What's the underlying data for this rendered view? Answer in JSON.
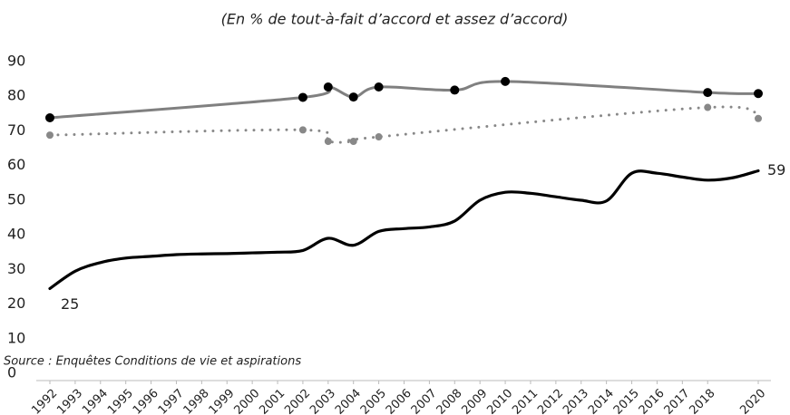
{
  "chart_data": {
    "type": "line",
    "subtitle": "(En % de tout-à-fait d’accord et assez d’accord)",
    "source": "Source : Enquêtes Conditions de vie et aspirations",
    "xlim": [
      1992,
      2020
    ],
    "xticks": [
      1992,
      1993,
      1994,
      1995,
      1996,
      1997,
      1998,
      1999,
      2000,
      2001,
      2002,
      2003,
      2004,
      2005,
      2006,
      2007,
      2008,
      2009,
      2010,
      2011,
      2012,
      2013,
      2014,
      2015,
      2016,
      2017,
      2018,
      2020
    ],
    "ylim": [
      0,
      90
    ],
    "yticks": [
      0,
      10,
      20,
      30,
      40,
      50,
      60,
      70,
      80,
      90
    ],
    "series": [
      {
        "color": "#808080",
        "style": "solid",
        "markers": true,
        "x": [
          1992,
          2002,
          2003,
          2004,
          2005,
          2008,
          2010,
          2018,
          2020
        ],
        "values": [
          74.3,
          80.2,
          83.2,
          80.3,
          83.2,
          82.3,
          84.8,
          81.6,
          81.3
        ]
      },
      {
        "color": "#888888",
        "style": "dotted",
        "markers": true,
        "x": [
          1992,
          2002,
          2003,
          2004,
          2005,
          2018,
          2020
        ],
        "values": [
          69.3,
          70.8,
          67.5,
          67.5,
          68.8,
          77.3,
          74.1
        ]
      },
      {
        "color": "#000000",
        "style": "solid",
        "markers": false,
        "x": [
          1992,
          1993,
          1994,
          1995,
          1996,
          1997,
          1998,
          1999,
          2000,
          2001,
          2002,
          2003,
          2004,
          2005,
          2006,
          2007,
          2008,
          2009,
          2010,
          2011,
          2012,
          2013,
          2014,
          2015,
          2016,
          2017,
          2018,
          2019,
          2020
        ],
        "values": [
          25,
          30,
          32.5,
          33.8,
          34.3,
          34.8,
          35,
          35.1,
          35.3,
          35.5,
          36,
          39.5,
          37.5,
          41.5,
          42.3,
          42.8,
          44.5,
          50.5,
          52.8,
          52.5,
          51.5,
          50.5,
          50.3,
          58.3,
          58.3,
          57.2,
          56.3,
          57,
          59
        ],
        "labelled": [
          0,
          28
        ]
      }
    ]
  }
}
